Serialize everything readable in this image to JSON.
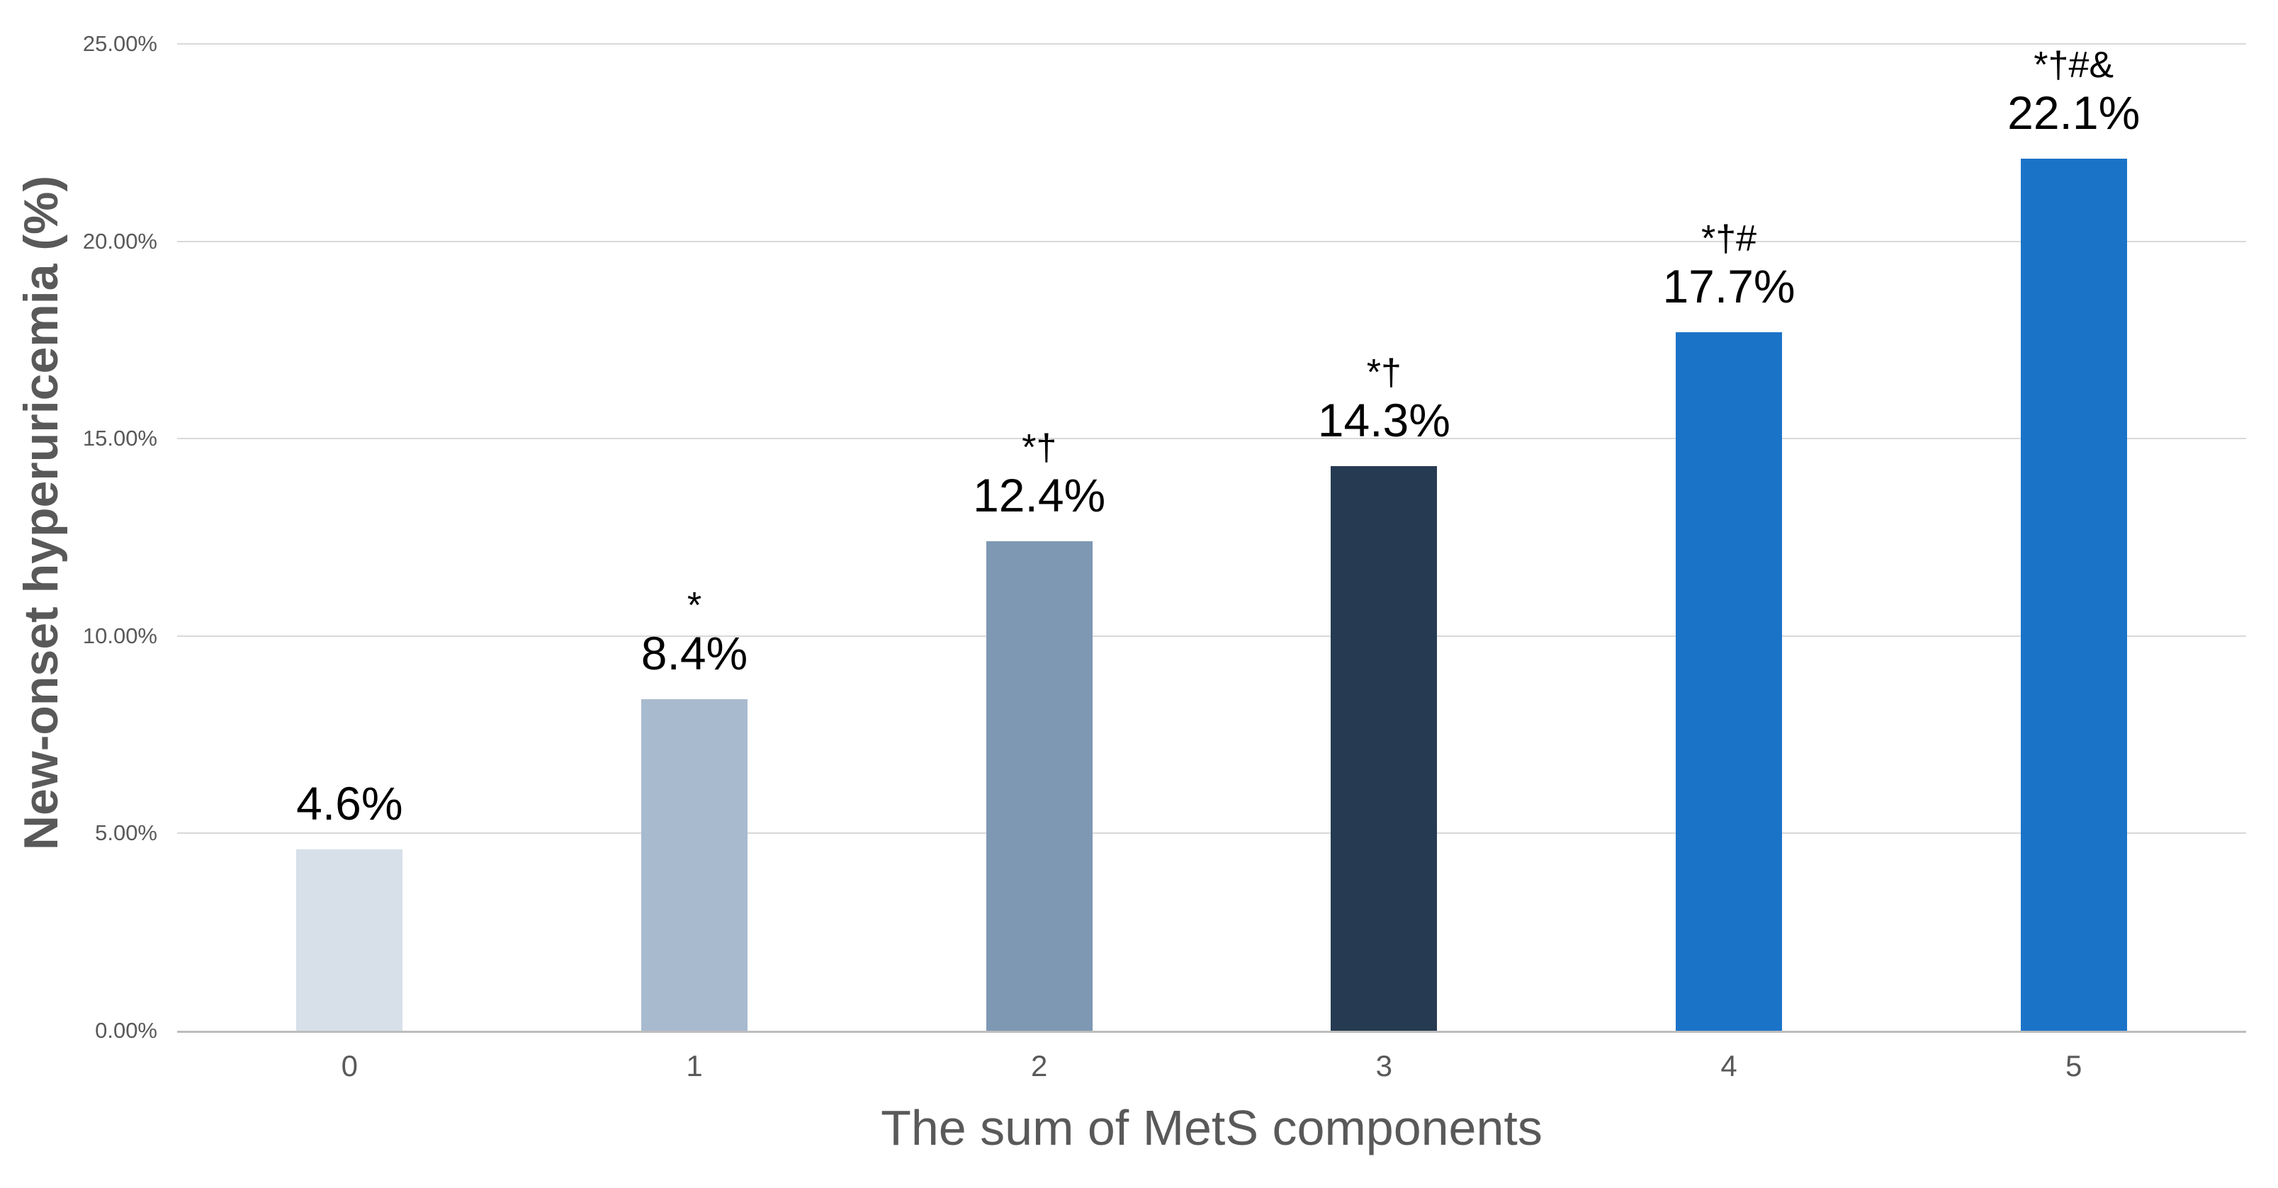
{
  "chart_data": {
    "type": "bar",
    "title": "",
    "xlabel": "The sum of MetS components",
    "ylabel": "New-onset hyperuricemia (%)",
    "categories": [
      "0",
      "1",
      "2",
      "3",
      "4",
      "5"
    ],
    "values": [
      4.6,
      8.4,
      12.4,
      14.3,
      17.7,
      22.1
    ],
    "value_labels": [
      "4.6%",
      "8.4%",
      "12.4%",
      "14.3%",
      "17.7%",
      "22.1%"
    ],
    "annotations": [
      "",
      "*",
      "*†",
      "*†",
      "*†#",
      "*†#&"
    ],
    "bar_colors": [
      "#D7DFE9",
      "#A8BACE",
      "#7E98B4",
      "#263B52",
      "#1B73C8",
      "#1B73C8"
    ],
    "ylim": [
      0,
      25
    ],
    "yticks": [
      {
        "value": 25,
        "label": "25.00%"
      },
      {
        "value": 20,
        "label": "20.00%"
      },
      {
        "value": 15,
        "label": "15.00%"
      },
      {
        "value": 10,
        "label": "10.00%"
      },
      {
        "value": 5,
        "label": "5.00%"
      },
      {
        "value": 0,
        "label": "0.00%"
      }
    ],
    "grid": "horizontal-on",
    "legend": "none",
    "colors": {
      "background": "#FFFFFF",
      "gridline": "#D9D9D9",
      "axis_line": "#BDBDBD",
      "tick_label": "#595959",
      "axis_title": "#595959",
      "value_label": "#000000"
    }
  }
}
